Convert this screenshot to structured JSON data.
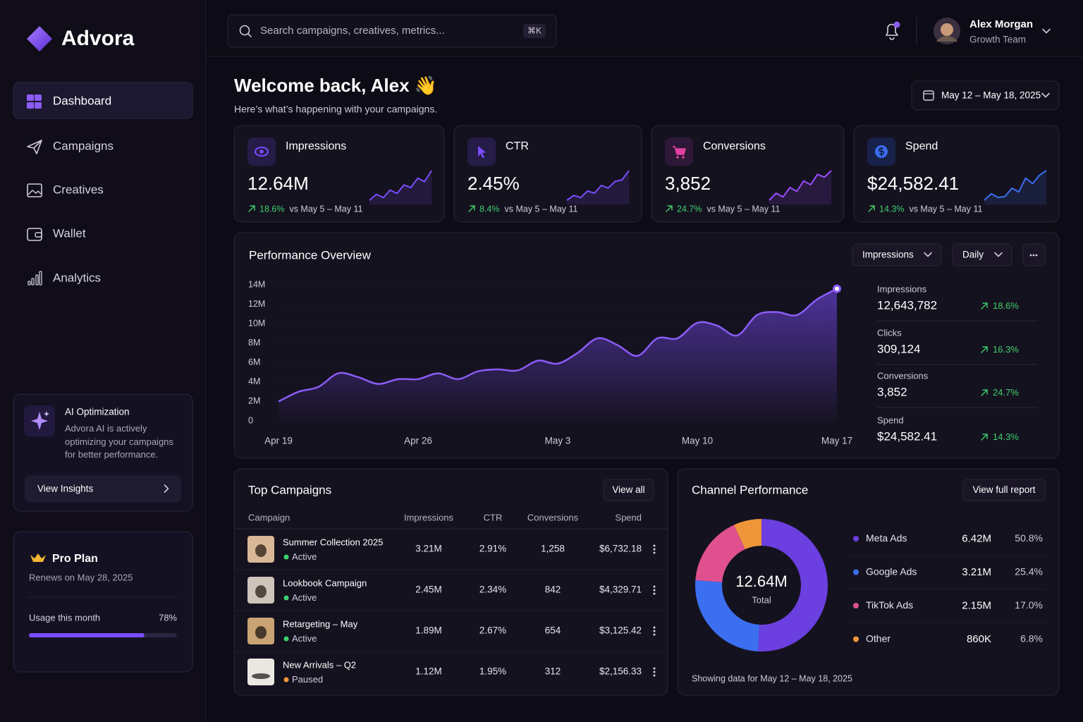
{
  "sidebar": {
    "brand": "Advora",
    "nav": [
      "Dashboard",
      "Campaigns",
      "Creatives",
      "Wallet",
      "Analytics"
    ],
    "ai_card": {
      "title": "AI Optimization",
      "text": "Advora AI is actively optimizing your campaigns for better performance.",
      "button": "View Insights"
    },
    "plan": {
      "title": "Pro Plan",
      "renews": "Renews on May 28, 2025",
      "usage_label": "Usage this month",
      "usage": {
        "value": 78,
        "label": "78%"
      },
      "color": "#7b4dff"
    }
  },
  "topbar": {
    "search_placeholder": "Search campaigns, creatives, metrics...",
    "shortcut": "⌘K",
    "user": {
      "name": "Alex Morgan",
      "team": "Growth Team"
    }
  },
  "header": {
    "greeting": "Welcome back, Alex 👋",
    "subtitle": "Here’s what’s happening with your campaigns.",
    "date_range": "May 12 – May 18, 2025"
  },
  "kpis": [
    {
      "title": "Impressions",
      "value": "12.64M",
      "change": "18.6%",
      "compare": "vs May 5 – May 11",
      "color": "#7b4dff",
      "sparkline": [
        20,
        34,
        26,
        44,
        36,
        56,
        50,
        72,
        64,
        90
      ]
    },
    {
      "title": "CTR",
      "value": "2.45%",
      "change": "8.4%",
      "compare": "vs May 5 – May 11",
      "color": "#7b4dff",
      "sparkline": [
        15,
        28,
        22,
        40,
        34,
        55,
        48,
        66,
        70,
        95
      ]
    },
    {
      "title": "Conversions",
      "value": "3,852",
      "change": "24.7%",
      "compare": "vs May 5 – May 11",
      "color": "#9b4dff",
      "sparkline": [
        25,
        40,
        32,
        52,
        44,
        66,
        58,
        80,
        74,
        88
      ]
    },
    {
      "title": "Spend",
      "value": "$24,582.41",
      "change": "14.3%",
      "compare": "vs May 5 – May 11",
      "color": "#3b6ff0",
      "sparkline": [
        22,
        36,
        28,
        30,
        48,
        40,
        70,
        58,
        76,
        86
      ]
    }
  ],
  "performance": {
    "title": "Performance Overview",
    "metric": "Impressions",
    "period": "Daily",
    "chart": {
      "type": "area",
      "color": "#8b5cf6",
      "grid": true,
      "categories": [
        "Apr 19",
        null,
        null,
        null,
        null,
        null,
        null,
        "Apr 26",
        null,
        null,
        null,
        null,
        null,
        null,
        "May 3",
        null,
        null,
        null,
        null,
        null,
        null,
        "May 10",
        null,
        null,
        null,
        null,
        null,
        null,
        "May 17"
      ],
      "values": [
        2000000,
        3000000,
        3500000,
        4900000,
        4500000,
        3800000,
        4300000,
        4300000,
        4900000,
        4300000,
        5100000,
        5300000,
        5200000,
        6200000,
        5900000,
        7000000,
        8500000,
        7800000,
        6700000,
        8500000,
        8500000,
        10100000,
        9800000,
        8800000,
        10900000,
        11200000,
        10900000,
        12500000,
        13600000
      ],
      "ylim": [
        0,
        14000000
      ],
      "yticks": [
        0,
        {
          "value": 2000000,
          "label": "2M"
        },
        {
          "value": 4000000,
          "label": "4M"
        },
        {
          "value": 6000000,
          "label": "6M"
        },
        {
          "value": 8000000,
          "label": "8M"
        },
        {
          "value": 10000000,
          "label": "10M"
        },
        {
          "value": 12000000,
          "label": "12M"
        },
        {
          "value": 14000000,
          "label": "14M"
        }
      ]
    },
    "stats": [
      {
        "label": "Impressions",
        "value": "12,643,782",
        "change": "18.6%"
      },
      {
        "label": "Clicks",
        "value": "309,124",
        "change": "16.3%"
      },
      {
        "label": "Conversions",
        "value": "3,852",
        "change": "24.7%"
      },
      {
        "label": "Spend",
        "value": "$24,582.41",
        "change": "14.3%"
      }
    ]
  },
  "campaigns": {
    "title": "Top Campaigns",
    "button": "View all",
    "columns": [
      "Campaign",
      "Impressions",
      "CTR",
      "Conversions",
      "Spend"
    ],
    "rows": [
      {
        "name": "Summer Collection 2025",
        "status": "Active",
        "status_color": "#3ecf6e",
        "impressions": "3.21M",
        "ctr": "2.91%",
        "conversions": "1,258",
        "spend": "$6,732.18"
      },
      {
        "name": "Lookbook Campaign",
        "status": "Active",
        "status_color": "#3ecf6e",
        "impressions": "2.45M",
        "ctr": "2.34%",
        "conversions": "842",
        "spend": "$4,329.71"
      },
      {
        "name": "Retargeting – May",
        "status": "Active",
        "status_color": "#3ecf6e",
        "impressions": "1.89M",
        "ctr": "2.67%",
        "conversions": "654",
        "spend": "$3,125.42"
      },
      {
        "name": "New Arrivals – Q2",
        "status": "Paused",
        "status_color": "#f0963a",
        "impressions": "1.12M",
        "ctr": "1.95%",
        "conversions": "312",
        "spend": "$2,156.33"
      }
    ]
  },
  "channels": {
    "title": "Channel Performance",
    "button": "View full report",
    "total": "12.64M",
    "total_label": "Total",
    "footer": "Showing data for May 12 – May 18, 2025",
    "series": [
      {
        "name": "Meta Ads",
        "value": "6.42M",
        "share": 50.8,
        "share_label": "50.8%",
        "color": "#6c3fe0"
      },
      {
        "name": "Google Ads",
        "value": "3.21M",
        "share": 25.4,
        "share_label": "25.4%",
        "color": "#3b6ff0"
      },
      {
        "name": "TikTok Ads",
        "value": "2.15M",
        "share": 17.0,
        "share_label": "17.0%",
        "color": "#e0508f"
      },
      {
        "name": "Other",
        "value": "860K",
        "share": 6.8,
        "share_label": "6.8%",
        "color": "#f0963a"
      }
    ]
  }
}
